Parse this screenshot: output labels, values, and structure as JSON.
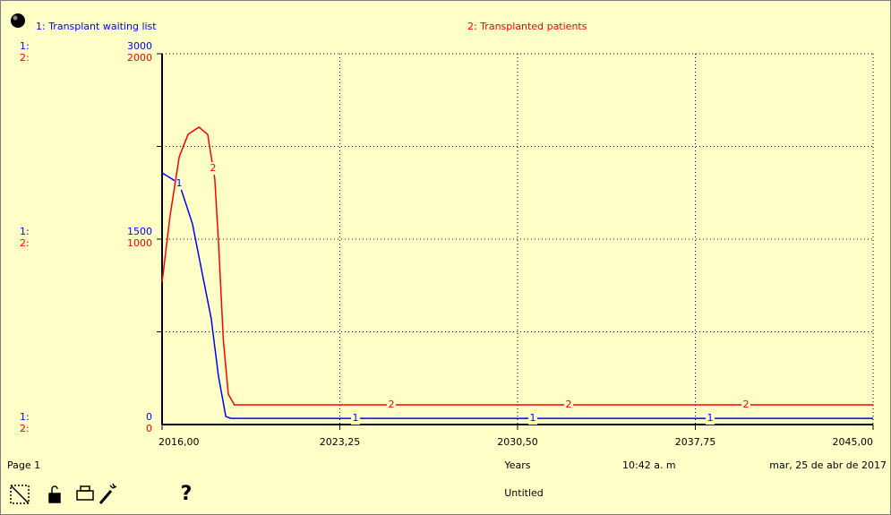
{
  "chart_data": {
    "type": "line",
    "series": [
      {
        "name": "1: Transplant waiting list",
        "axis_label": "1:",
        "marker": "1",
        "color": "#0000ff",
        "axis": "y",
        "x": [
          2016,
          2016.7,
          2017.24,
          2017.6,
          2018.0,
          2018.3,
          2018.6,
          2018.8,
          2045
        ],
        "values": [
          2036,
          1950,
          1623,
          1261,
          862,
          391,
          65,
          50,
          50
        ]
      },
      {
        "name": "2: Transplanted patients",
        "axis_label": "2:",
        "marker": "2",
        "color": "#ff0000",
        "axis": "y2",
        "x": [
          2016,
          2016.33,
          2016.7,
          2017.06,
          2017.5,
          2017.86,
          2018.15,
          2018.3,
          2018.5,
          2018.7,
          2018.95,
          2045
        ],
        "values": [
          768,
          1130,
          1444,
          1565,
          1604,
          1565,
          1324,
          985,
          454,
          164,
          106,
          106
        ]
      }
    ],
    "xlim": [
      2016,
      2045
    ],
    "xticks": [
      {
        "value": 2016,
        "label": "2016,00"
      },
      {
        "value": 2023.25,
        "label": "2023,25"
      },
      {
        "value": 2030.5,
        "label": "2030,50"
      },
      {
        "value": 2037.75,
        "label": "2037,75"
      },
      {
        "value": 2045,
        "label": "2045,00"
      }
    ],
    "ylim": [
      0,
      3000
    ],
    "yticks": [
      0,
      1500,
      3000
    ],
    "ygrid": [
      750,
      1500,
      2250,
      3000
    ],
    "y2lim": [
      0,
      2000
    ],
    "y2ticks": [
      0,
      1000,
      2000
    ],
    "x_label": "Years",
    "grid": true
  },
  "footer": {
    "page": "Page 1",
    "time": "10:42 a. m",
    "date": "mar, 25 de abr de 2017",
    "file": "Untitled",
    "help": "?"
  }
}
